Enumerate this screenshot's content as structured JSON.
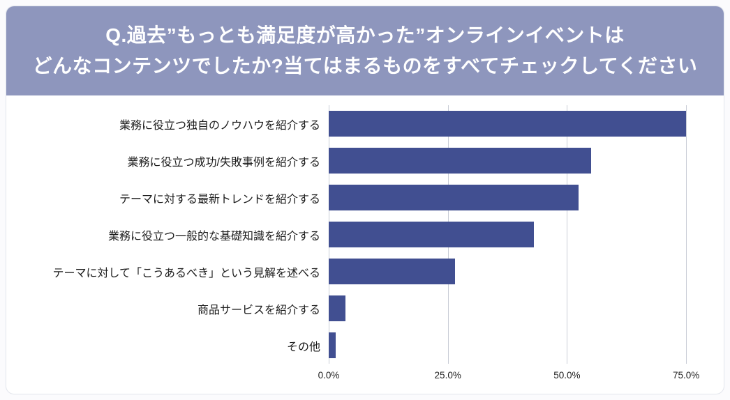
{
  "header": {
    "title_line1": "Q.過去”もっとも満足度が高かった”オンラインイベントは",
    "title_line2": "どんなコンテンツでしたか?当てはまるものをすべてチェックしてください"
  },
  "colors": {
    "header_bg": "#8e96bd",
    "bar": "#414f91",
    "gridline": "#c9cdd6"
  },
  "chart_data": {
    "type": "bar",
    "orientation": "horizontal",
    "title": "Q.過去”もっとも満足度が高かった”オンラインイベントは どんなコンテンツでしたか?当てはまるものをすべてチェックしてください",
    "categories": [
      "業務に役立つ独自のノウハウを紹介する",
      "業務に役立つ成功/失敗事例を紹介する",
      "テーマに対する最新トレンドを紹介する",
      "業務に役立つ一般的な基礎知識を紹介する",
      "テーマに対して「こうあるべき」という見解を述べる",
      "商品サービスを紹介する",
      "その他"
    ],
    "values": [
      75.0,
      55.0,
      52.5,
      43.0,
      26.5,
      3.5,
      1.5
    ],
    "unit": "%",
    "xlim": [
      0,
      78.5
    ],
    "x_tick_values": [
      0,
      25,
      50,
      75
    ],
    "x_ticks": [
      "0.0%",
      "25.0%",
      "50.0%",
      "75.0%"
    ],
    "grid": true,
    "legend": false
  }
}
